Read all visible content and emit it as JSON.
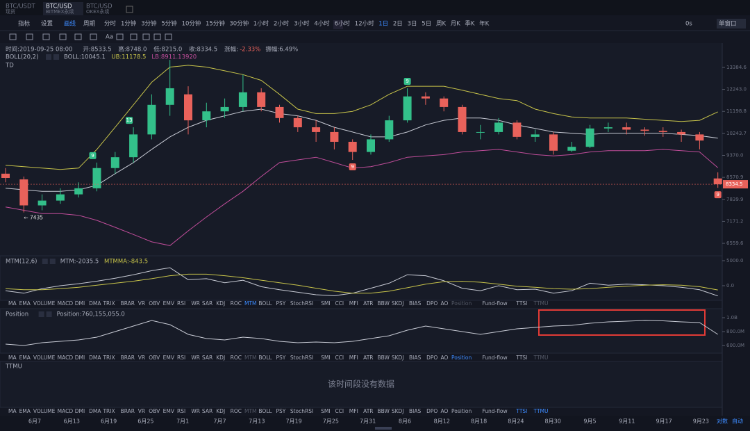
{
  "tabs": [
    {
      "title": "BTC/USDT",
      "sub": "现货"
    },
    {
      "title": "BTC/USD",
      "sub": "BITMEX永续"
    },
    {
      "title": "BTC/USD",
      "sub": "OKEX永续"
    }
  ],
  "toolbar": {
    "buttons": [
      "指标",
      "设置",
      "画线"
    ],
    "period_label": "周期",
    "periods": [
      "分时",
      "1分钟",
      "3分钟",
      "5分钟",
      "10分钟",
      "15分钟",
      "30分钟",
      "1小时",
      "2小时",
      "3小时",
      "4小时",
      "6小时",
      "12小时",
      "1日",
      "2日",
      "3日",
      "5日",
      "周K",
      "月K",
      "季K",
      "年K"
    ],
    "active_period": "1日",
    "right": [
      "0s",
      "单窗口"
    ],
    "text_tool": "Aa"
  },
  "info": [
    "时间:2019-09-25 08:00",
    "开:8533.5",
    "高:8748.0",
    "低:8215.0",
    "收:8334.5",
    "涨幅:",
    "-2.33%",
    "振幅:6.49%"
  ],
  "chart_data": [
    {
      "type": "candlestick",
      "legend": [
        "BOLL(20,2)",
        "BOLL:10045.1",
        "UB:11178.5",
        "LB:8911.13920",
        "TD"
      ],
      "log_scale": true,
      "ylim": [
        6236,
        14770
      ],
      "yticks": [
        {
          "value": 13384.6,
          "label": "13384.6"
        },
        {
          "value": 12243,
          "label": "12243.0"
        },
        {
          "value": 11198.8,
          "label": "11198.8"
        },
        {
          "value": 10243.7,
          "label": "10243.7"
        },
        {
          "value": 9370,
          "label": "9370.0"
        },
        {
          "value": 8570.9,
          "label": "8570.9"
        },
        {
          "value": 7839.9,
          "label": "7839.9"
        },
        {
          "value": 7171.2,
          "label": "7171.2"
        },
        {
          "value": 6559.6,
          "label": "6559.6"
        }
      ],
      "up_color": "#33c08a",
      "down_color": "#e9625b",
      "open": [
        8700,
        8500,
        7650,
        7800,
        8000,
        8200,
        8900,
        9300,
        10200,
        11500,
        12000,
        10800,
        11200,
        11400,
        12100,
        11400,
        10900,
        10500,
        10300,
        9900,
        9500,
        10000,
        10800,
        11900,
        11800,
        11400,
        10300,
        10300,
        10700,
        10100,
        10200,
        9550,
        9700,
        10450,
        10500,
        10400,
        10350,
        10300,
        10200,
        8533.5
      ],
      "high": [
        8900,
        8600,
        8000,
        8200,
        8400,
        9100,
        9500,
        10500,
        12000,
        13800,
        12400,
        11600,
        11800,
        13000,
        12300,
        11500,
        11000,
        10800,
        10500,
        10000,
        10200,
        11000,
        12300,
        12100,
        11900,
        11500,
        10600,
        10900,
        10800,
        10400,
        10300,
        9900,
        10600,
        10700,
        10700,
        10500,
        10500,
        10400,
        10300,
        8748.0
      ],
      "low": [
        8400,
        7435,
        7500,
        7700,
        7900,
        8100,
        8700,
        9100,
        10000,
        11000,
        10200,
        10500,
        10900,
        11200,
        11200,
        10700,
        10300,
        9900,
        9600,
        9200,
        9400,
        9900,
        10700,
        11500,
        11200,
        10200,
        10000,
        10200,
        10000,
        9900,
        9400,
        9500,
        9650,
        10300,
        10200,
        10150,
        10100,
        9900,
        9600,
        8215.0
      ],
      "close": [
        8550,
        7650,
        7800,
        8000,
        8200,
        8900,
        9300,
        10200,
        11500,
        12300,
        10800,
        11200,
        11400,
        12100,
        11400,
        10900,
        10500,
        10300,
        9900,
        9500,
        10000,
        10800,
        11900,
        11800,
        11400,
        10300,
        10300,
        10700,
        10100,
        10200,
        9550,
        9700,
        10450,
        10500,
        10400,
        10350,
        10300,
        10200,
        9950,
        8334.5
      ],
      "series": [
        {
          "name": "UB",
          "color": "#c8c44a",
          "values": [
            9000,
            8950,
            8900,
            8850,
            8900,
            9600,
            10500,
            11500,
            12600,
            13400,
            13500,
            13400,
            13200,
            13000,
            12700,
            12000,
            11300,
            11100,
            11100,
            11200,
            11500,
            12000,
            12400,
            12400,
            12400,
            12200,
            12000,
            11800,
            11700,
            11300,
            11100,
            10950,
            10900,
            10900,
            10900,
            10850,
            10800,
            10750,
            10800,
            11178.5
          ]
        },
        {
          "name": "BOLL",
          "color": "#c9ccd6",
          "values": [
            8200,
            8150,
            8100,
            8100,
            8150,
            8300,
            8700,
            9100,
            9600,
            10100,
            10500,
            10800,
            11000,
            11200,
            11300,
            11100,
            11000,
            10800,
            10500,
            10300,
            10100,
            10100,
            10300,
            10600,
            10800,
            10900,
            10900,
            10800,
            10600,
            10450,
            10300,
            10250,
            10200,
            10250,
            10250,
            10250,
            10250,
            10200,
            10150,
            10045.1
          ]
        },
        {
          "name": "LB",
          "color": "#c04d9a",
          "values": [
            7600,
            7500,
            7400,
            7400,
            7350,
            7200,
            7000,
            6800,
            6600,
            6500,
            6900,
            7300,
            7700,
            8100,
            8600,
            9100,
            9200,
            9300,
            9100,
            8900,
            8950,
            9100,
            9300,
            9350,
            9400,
            9500,
            9550,
            9600,
            9500,
            9400,
            9350,
            9400,
            9500,
            9550,
            9550,
            9550,
            9600,
            9550,
            9500,
            8911.1
          ]
        }
      ],
      "annotations": [
        "9",
        "13",
        "9",
        "9",
        "9",
        "← 7435"
      ]
    },
    {
      "type": "line",
      "legend": [
        "MTM(12,6)",
        "MTM:-2035.5",
        "MTMMA:-843.5"
      ],
      "ylim": [
        -2917,
        5972
      ],
      "yticks": [
        {
          "value": 5000,
          "label": "5000.0"
        },
        {
          "value": 0,
          "label": "0.0"
        }
      ],
      "series": [
        {
          "name": "MTM",
          "color": "#c9ccd6",
          "values": [
            -1000,
            -1500,
            -600,
            0,
            400,
            900,
            1500,
            2200,
            3000,
            3600,
            1200,
            1400,
            600,
            1100,
            -200,
            -800,
            -1300,
            -1800,
            -2000,
            -1500,
            -500,
            500,
            2200,
            2000,
            1000,
            -500,
            -1000,
            0,
            -800,
            -700,
            -1500,
            -1000,
            500,
            100,
            300,
            200,
            0,
            -300,
            -800,
            -2035.5
          ]
        },
        {
          "name": "MTMMA",
          "color": "#c8c44a",
          "values": [
            -600,
            -800,
            -800,
            -600,
            -300,
            100,
            500,
            900,
            1400,
            2000,
            2300,
            2300,
            2000,
            1600,
            1100,
            600,
            100,
            -500,
            -1100,
            -1500,
            -1500,
            -1100,
            -400,
            300,
            800,
            900,
            700,
            300,
            -100,
            -300,
            -600,
            -700,
            -600,
            -300,
            -100,
            100,
            200,
            100,
            -200,
            -843.5
          ]
        }
      ]
    },
    {
      "type": "line",
      "legend": [
        "Position",
        "Position:760,155,055.0"
      ],
      "ylim": [
        490000000,
        1130000000
      ],
      "yticks": [
        {
          "value": 1000000000,
          "label": "1.0B"
        },
        {
          "value": 800000000,
          "label": "800.0M"
        },
        {
          "value": 600000000,
          "label": "600.0M"
        }
      ],
      "series": [
        {
          "name": "Position",
          "color": "#c9ccd6",
          "values": [
            620000000,
            600000000,
            640000000,
            660000000,
            680000000,
            720000000,
            800000000,
            880000000,
            960000000,
            900000000,
            760000000,
            700000000,
            680000000,
            720000000,
            700000000,
            660000000,
            640000000,
            650000000,
            640000000,
            660000000,
            700000000,
            740000000,
            820000000,
            880000000,
            840000000,
            800000000,
            760000000,
            800000000,
            840000000,
            860000000,
            880000000,
            890000000,
            920000000,
            940000000,
            950000000,
            960000000,
            955000000,
            940000000,
            930000000,
            760155055
          ]
        }
      ]
    }
  ],
  "indicator_tabs": [
    "MA",
    "EMA",
    "VOLUME",
    "MACD",
    "DMI",
    "DMA",
    "TRIX",
    "BRAR",
    "VR",
    "OBV",
    "EMV",
    "RSI",
    "WR",
    "SAR",
    "KDJ",
    "ROC",
    "MTM",
    "BOLL",
    "PSY",
    "StochRSI",
    "SMI",
    "CCI",
    "MFI",
    "ATR",
    "BBW",
    "SKDJ",
    "BIAS",
    "DPO",
    "AO",
    "Position",
    "Fund-flow",
    "TTSI",
    "TTMU"
  ],
  "ttmu": {
    "label": "TTMU",
    "empty": "该时间段没有数据"
  },
  "time_axis": [
    "6月7",
    "6月13",
    "6月19",
    "6月25",
    "7月1",
    "7月7",
    "7月13",
    "7月19",
    "7月25",
    "7月31",
    "8月6",
    "8月12",
    "8月18",
    "8月24",
    "8月30",
    "9月5",
    "9月11",
    "9月17",
    "9月23"
  ],
  "axis_buttons": [
    "对数",
    "自动"
  ]
}
